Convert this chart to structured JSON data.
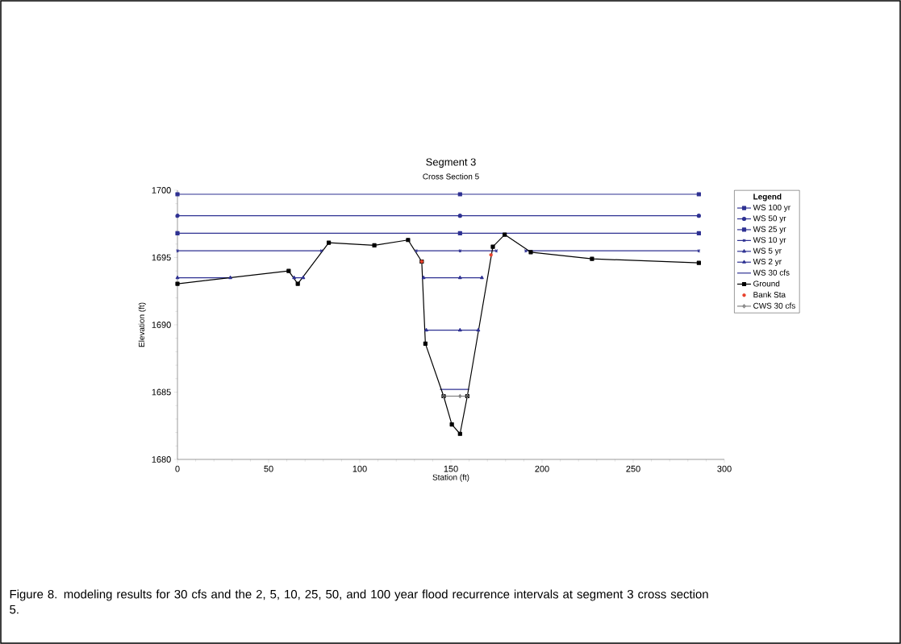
{
  "chart_data": {
    "type": "line",
    "title": "Segment 3",
    "subtitle": "Cross Section 5",
    "xlabel": "Station (ft)",
    "ylabel": "Elevation (ft)",
    "legend_title": "Legend",
    "xlim": [
      0,
      300
    ],
    "xticks": [
      0,
      50,
      100,
      150,
      200,
      250,
      300
    ],
    "ylim": [
      1680,
      1700
    ],
    "yticks": [
      1680,
      1685,
      1690,
      1695,
      1700
    ],
    "legend": "right",
    "series": [
      {
        "name": "WS 100 yr",
        "color": "#2e3192",
        "marker": "square",
        "x": [
          0,
          155,
          286
        ],
        "values": [
          1699.7,
          1699.7,
          1699.7
        ]
      },
      {
        "name": "WS 50 yr",
        "color": "#2e3192",
        "marker": "circle",
        "x": [
          0,
          155,
          286
        ],
        "values": [
          1698.1,
          1698.1,
          1698.1
        ]
      },
      {
        "name": "WS 25 yr",
        "color": "#2e3192",
        "marker": "square",
        "x": [
          0,
          155,
          286
        ],
        "values": [
          1696.8,
          1696.8,
          1696.8
        ]
      },
      {
        "name": "WS 10 yr",
        "color": "#2e3192",
        "marker": "cross",
        "x": [
          0,
          79,
          null,
          131,
          155,
          175,
          null,
          191,
          286
        ],
        "values": [
          1695.5,
          1695.5,
          null,
          1695.5,
          1695.5,
          1695.5,
          null,
          1695.5,
          1695.5
        ]
      },
      {
        "name": "WS 5 yr",
        "color": "#2e3192",
        "marker": "triangle",
        "x": [
          0,
          29,
          null,
          64,
          69,
          null,
          135,
          155,
          167
        ],
        "values": [
          1693.5,
          1693.5,
          null,
          1693.5,
          1693.5,
          null,
          1693.5,
          1693.5,
          1693.5
        ]
      },
      {
        "name": "WS 2 yr",
        "color": "#2e3192",
        "marker": "triangle",
        "x": [
          136.5,
          155,
          165
        ],
        "values": [
          1689.6,
          1689.6,
          1689.6
        ]
      },
      {
        "name": "WS 30 cfs",
        "color": "#2e3192",
        "marker": "none",
        "x": [
          144,
          160
        ],
        "values": [
          1685.2,
          1685.2
        ]
      },
      {
        "name": "Ground",
        "color": "#000000",
        "marker": "square",
        "x": [
          0,
          61,
          66,
          83,
          108,
          126.5,
          134,
          136,
          146,
          150.5,
          155,
          159,
          173,
          179.5,
          193.8,
          227.4,
          286
        ],
        "values": [
          1693.05,
          1694.0,
          1693.05,
          1696.1,
          1695.9,
          1696.3,
          1694.7,
          1688.6,
          1684.7,
          1682.6,
          1681.9,
          1684.7,
          1695.8,
          1696.7,
          1695.4,
          1694.9,
          1694.6
        ]
      },
      {
        "name": "Bank Sta",
        "type": "scatter",
        "color": "#e8412c",
        "marker": "circle",
        "x": [
          134,
          172
        ],
        "values": [
          1694.7,
          1695.2
        ]
      },
      {
        "name": "CWS 30 cfs",
        "color": "#808080",
        "marker": "diamond",
        "x": [
          146,
          155,
          159
        ],
        "values": [
          1684.7,
          1684.7,
          1684.7
        ]
      }
    ],
    "annotations": [
      "Figure 8. modeling results for 30 cfs and the 2, 5, 10, 25, 50, and 100 year flood recurrence intervals at segment 3 cross section 5."
    ]
  }
}
